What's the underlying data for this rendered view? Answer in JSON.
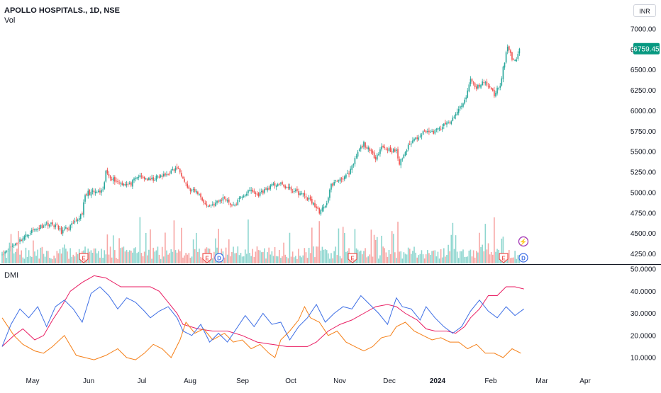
{
  "header": {
    "symbol_title": "APOLLO HOSPITALS., 1D, NSE",
    "volume_label": "Vol",
    "indicator_label": "DMI",
    "currency": "INR"
  },
  "colors": {
    "up": "#26a69a",
    "down": "#ef5350",
    "vol_up": "#8ed6cf",
    "vol_down": "#f7a6a4",
    "dmi_plus": "#3d6ee5",
    "dmi_minus": "#f57f17",
    "adx": "#e91e63",
    "price_tag": "#089981"
  },
  "chart_data": [
    {
      "type": "candlestick",
      "title": "APOLLO HOSPITALS., 1D, NSE",
      "x_labels": [
        "May",
        "Jun",
        "Jul",
        "Aug",
        "Sep",
        "Oct",
        "Nov",
        "Dec",
        "2024",
        "Feb",
        "Mar",
        "Apr"
      ],
      "y_ticks": [
        "7000.00",
        "6750.00",
        "6500.00",
        "6250.00",
        "6000.00",
        "5750.00",
        "5500.00",
        "5250.00",
        "5000.00",
        "4750.00",
        "4500.00",
        "4250.00"
      ],
      "ylim": [
        4200,
        7100
      ],
      "last_price": "6759.45",
      "price_path": [
        [
          0,
          4250
        ],
        [
          10,
          4390
        ],
        [
          20,
          4530
        ],
        [
          30,
          4620
        ],
        [
          36,
          4600
        ],
        [
          40,
          4520
        ],
        [
          44,
          4560
        ],
        [
          50,
          4640
        ],
        [
          54,
          4760
        ],
        [
          56,
          4950
        ],
        [
          58,
          5000
        ],
        [
          64,
          5000
        ],
        [
          68,
          5010
        ],
        [
          70,
          5250
        ],
        [
          74,
          5180
        ],
        [
          78,
          5130
        ],
        [
          86,
          5090
        ],
        [
          92,
          5200
        ],
        [
          100,
          5150
        ],
        [
          104,
          5180
        ],
        [
          110,
          5210
        ],
        [
          118,
          5300
        ],
        [
          122,
          5200
        ],
        [
          126,
          5030
        ],
        [
          132,
          5000
        ],
        [
          138,
          4830
        ],
        [
          144,
          4870
        ],
        [
          150,
          4940
        ],
        [
          156,
          4830
        ],
        [
          162,
          4960
        ],
        [
          168,
          5030
        ],
        [
          172,
          4970
        ],
        [
          180,
          5060
        ],
        [
          186,
          5110
        ],
        [
          192,
          5060
        ],
        [
          198,
          5010
        ],
        [
          204,
          4960
        ],
        [
          210,
          4870
        ],
        [
          212,
          4800
        ],
        [
          214,
          4770
        ],
        [
          218,
          4820
        ],
        [
          222,
          5090
        ],
        [
          228,
          5170
        ],
        [
          234,
          5220
        ],
        [
          240,
          5490
        ],
        [
          244,
          5600
        ],
        [
          248,
          5500
        ],
        [
          252,
          5430
        ],
        [
          256,
          5560
        ],
        [
          262,
          5520
        ],
        [
          266,
          5500
        ],
        [
          268,
          5350
        ],
        [
          272,
          5500
        ],
        [
          276,
          5620
        ],
        [
          280,
          5680
        ],
        [
          286,
          5760
        ],
        [
          290,
          5730
        ],
        [
          294,
          5770
        ],
        [
          300,
          5840
        ],
        [
          304,
          5890
        ],
        [
          308,
          6020
        ],
        [
          312,
          6120
        ],
        [
          314,
          6250
        ],
        [
          316,
          6380
        ],
        [
          320,
          6270
        ],
        [
          324,
          6360
        ],
        [
          328,
          6300
        ],
        [
          332,
          6200
        ],
        [
          336,
          6320
        ],
        [
          338,
          6520
        ],
        [
          341,
          6790
        ],
        [
          343,
          6700
        ],
        [
          345,
          6600
        ],
        [
          347,
          6650
        ],
        [
          349,
          6760
        ]
      ],
      "volume_events_1": [
        "E",
        "E",
        "D",
        "E",
        "E",
        "D"
      ],
      "volume_events_2": [
        "⚡"
      ]
    },
    {
      "type": "line",
      "title": "DMI",
      "y_ticks": [
        "50.0000",
        "40.0000",
        "30.0000",
        "20.0000",
        "10.0000"
      ],
      "ylim": [
        5,
        50
      ],
      "series": [
        {
          "key": "adx",
          "points": [
            [
              0,
              15
            ],
            [
              8,
              20
            ],
            [
              14,
              23
            ],
            [
              22,
              18
            ],
            [
              28,
              20
            ],
            [
              34,
              27
            ],
            [
              40,
              33
            ],
            [
              46,
              40
            ],
            [
              54,
              44
            ],
            [
              62,
              47
            ],
            [
              70,
              46
            ],
            [
              80,
              42
            ],
            [
              90,
              42
            ],
            [
              100,
              42
            ],
            [
              106,
              40
            ],
            [
              112,
              35
            ],
            [
              118,
              30
            ],
            [
              122,
              25
            ],
            [
              132,
              23
            ],
            [
              142,
              22
            ],
            [
              152,
              22
            ],
            [
              162,
              20
            ],
            [
              172,
              17
            ],
            [
              182,
              16
            ],
            [
              192,
              15
            ],
            [
              200,
              15
            ],
            [
              206,
              15
            ],
            [
              212,
              17
            ],
            [
              220,
              22
            ],
            [
              228,
              25
            ],
            [
              236,
              27
            ],
            [
              244,
              30
            ],
            [
              252,
              33
            ],
            [
              260,
              34
            ],
            [
              266,
              33
            ],
            [
              272,
              30
            ],
            [
              280,
              27
            ],
            [
              286,
              23
            ],
            [
              292,
              22
            ],
            [
              300,
              22
            ],
            [
              306,
              21
            ],
            [
              312,
              24
            ],
            [
              316,
              28
            ],
            [
              322,
              32
            ],
            [
              328,
              38
            ],
            [
              334,
              38
            ],
            [
              340,
              42
            ],
            [
              346,
              42
            ],
            [
              352,
              41
            ]
          ]
        },
        {
          "key": "minus",
          "points": [
            [
              0,
              28
            ],
            [
              8,
              20
            ],
            [
              14,
              16
            ],
            [
              22,
              13
            ],
            [
              28,
              12
            ],
            [
              34,
              15
            ],
            [
              42,
              20
            ],
            [
              50,
              11
            ],
            [
              56,
              10
            ],
            [
              62,
              9
            ],
            [
              70,
              11
            ],
            [
              78,
              14
            ],
            [
              84,
              10
            ],
            [
              90,
              9
            ],
            [
              96,
              12
            ],
            [
              102,
              16
            ],
            [
              108,
              14
            ],
            [
              114,
              10
            ],
            [
              120,
              18
            ],
            [
              124,
              26
            ],
            [
              130,
              21
            ],
            [
              136,
              23
            ],
            [
              142,
              18
            ],
            [
              150,
              21
            ],
            [
              156,
              17
            ],
            [
              162,
              18
            ],
            [
              168,
              14
            ],
            [
              174,
              16
            ],
            [
              180,
              12
            ],
            [
              184,
              10
            ],
            [
              188,
              18
            ],
            [
              194,
              22
            ],
            [
              200,
              27
            ],
            [
              204,
              33
            ],
            [
              208,
              28
            ],
            [
              214,
              26
            ],
            [
              220,
              20
            ],
            [
              226,
              22
            ],
            [
              232,
              17
            ],
            [
              238,
              15
            ],
            [
              244,
              13
            ],
            [
              250,
              15
            ],
            [
              256,
              19
            ],
            [
              262,
              20
            ],
            [
              266,
              24
            ],
            [
              272,
              26
            ],
            [
              278,
              22
            ],
            [
              284,
              20
            ],
            [
              290,
              18
            ],
            [
              296,
              19
            ],
            [
              302,
              17
            ],
            [
              308,
              17
            ],
            [
              314,
              14
            ],
            [
              320,
              16
            ],
            [
              326,
              12
            ],
            [
              332,
              12
            ],
            [
              338,
              10
            ],
            [
              344,
              14
            ],
            [
              350,
              12
            ]
          ]
        },
        {
          "key": "plus",
          "points": [
            [
              0,
              15
            ],
            [
              6,
              25
            ],
            [
              12,
              32
            ],
            [
              18,
              28
            ],
            [
              24,
              33
            ],
            [
              30,
              24
            ],
            [
              36,
              33
            ],
            [
              42,
              36
            ],
            [
              48,
              32
            ],
            [
              54,
              26
            ],
            [
              60,
              39
            ],
            [
              66,
              42
            ],
            [
              72,
              38
            ],
            [
              78,
              32
            ],
            [
              84,
              37
            ],
            [
              90,
              35
            ],
            [
              96,
              31
            ],
            [
              100,
              28
            ],
            [
              106,
              31
            ],
            [
              112,
              33
            ],
            [
              118,
              28
            ],
            [
              122,
              22
            ],
            [
              128,
              20
            ],
            [
              134,
              25
            ],
            [
              140,
              17
            ],
            [
              146,
              21
            ],
            [
              152,
              17
            ],
            [
              158,
              23
            ],
            [
              164,
              29
            ],
            [
              170,
              24
            ],
            [
              176,
              30
            ],
            [
              182,
              25
            ],
            [
              188,
              26
            ],
            [
              194,
              18
            ],
            [
              200,
              24
            ],
            [
              206,
              28
            ],
            [
              212,
              34
            ],
            [
              218,
              26
            ],
            [
              224,
              30
            ],
            [
              230,
              33
            ],
            [
              236,
              32
            ],
            [
              242,
              38
            ],
            [
              248,
              34
            ],
            [
              254,
              30
            ],
            [
              260,
              25
            ],
            [
              266,
              37
            ],
            [
              270,
              33
            ],
            [
              276,
              32
            ],
            [
              282,
              27
            ],
            [
              286,
              33
            ],
            [
              292,
              28
            ],
            [
              298,
              24
            ],
            [
              304,
              21
            ],
            [
              310,
              24
            ],
            [
              316,
              31
            ],
            [
              322,
              36
            ],
            [
              328,
              31
            ],
            [
              334,
              28
            ],
            [
              340,
              33
            ],
            [
              346,
              29
            ],
            [
              352,
              32
            ]
          ]
        }
      ]
    }
  ]
}
